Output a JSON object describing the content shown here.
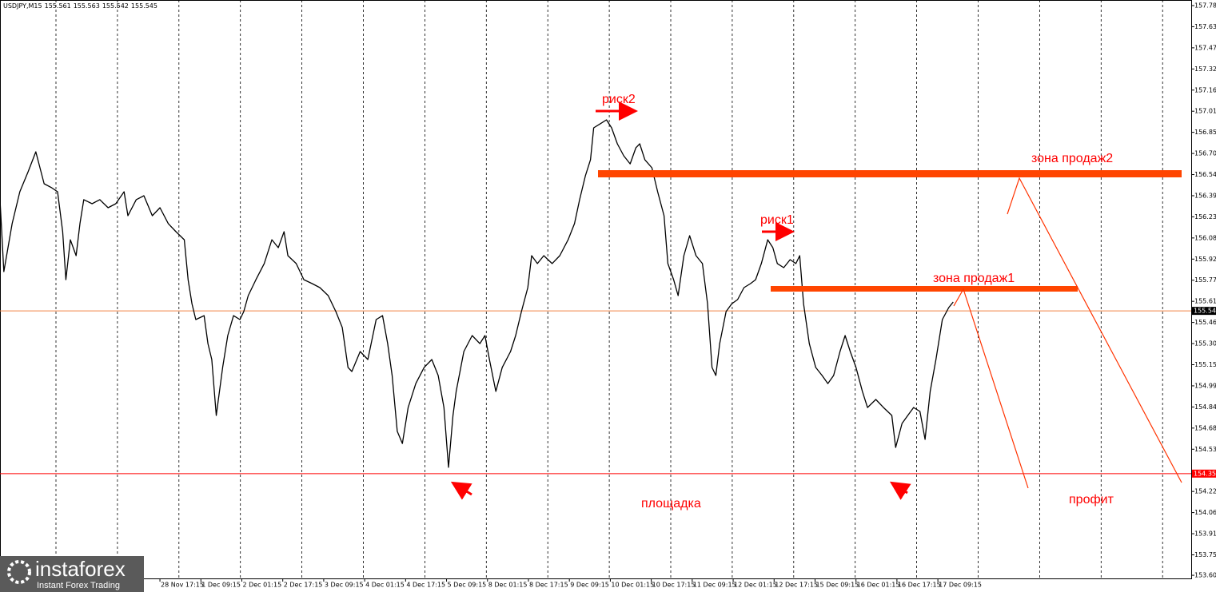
{
  "chart_data": {
    "type": "line",
    "symbol": "USDJPY,M15",
    "ohlc": [
      155.561,
      155.563,
      155.542,
      155.545
    ],
    "xlim": [
      0,
      1862
    ],
    "ylim": [
      153.582,
      157.826
    ],
    "xticks": [
      {
        "value": 250,
        "label": "28 Nov 17:15"
      },
      {
        "value": 314,
        "label": "1 Dec 09:15"
      },
      {
        "value": 378,
        "label": "2 Dec 01:15"
      },
      {
        "value": 442,
        "label": "2 Dec 17:15"
      },
      {
        "value": 506,
        "label": "3 Dec 09:15"
      },
      {
        "value": 570,
        "label": "4 Dec 01:15"
      },
      {
        "value": 634,
        "label": "4 Dec 17:15"
      },
      {
        "value": 698,
        "label": "5 Dec 09:15"
      },
      {
        "value": 762,
        "label": "8 Dec 01:15"
      },
      {
        "value": 826,
        "label": "8 Dec 17:15"
      },
      {
        "value": 890,
        "label": "9 Dec 09:15"
      },
      {
        "value": 954,
        "label": "10 Dec 01:15"
      },
      {
        "value": 1018,
        "label": "10 Dec 17:15"
      },
      {
        "value": 1082,
        "label": "11 Dec 09:15"
      },
      {
        "value": 1146,
        "label": "12 Dec 01:15"
      },
      {
        "value": 1210,
        "label": "12 Dec 17:15"
      },
      {
        "value": 1274,
        "label": "15 Dec 09:15"
      },
      {
        "value": 1338,
        "label": "16 Dec 01:15"
      },
      {
        "value": 1402,
        "label": "16 Dec 17:15"
      },
      {
        "value": 1466,
        "label": "17 Dec 09:15"
      }
    ],
    "yticks": [
      157.785,
      {
        "value": 157.63,
        "label": "157.630"
      },
      157.475,
      {
        "value": 157.32,
        "label": "157.320"
      },
      157.165,
      {
        "value": 157.01,
        "label": "157.010"
      },
      156.855,
      {
        "value": 156.7,
        "label": "156.700"
      },
      156.545,
      {
        "value": 156.39,
        "label": "156.390"
      },
      156.235,
      {
        "value": 156.08,
        "label": "156.080"
      },
      155.925,
      {
        "value": 155.77,
        "label": "155.770"
      },
      155.615,
      {
        "value": 155.46,
        "label": "155.460"
      },
      155.305,
      {
        "value": 155.15,
        "label": "155.150"
      },
      154.995,
      {
        "value": 154.84,
        "label": "154.840"
      },
      154.685,
      {
        "value": 154.53,
        "label": "154.530"
      },
      {
        "value": 154.22,
        "label": "154.220"
      },
      154.065,
      {
        "value": 153.91,
        "label": "153.910"
      },
      153.755,
      153.605
    ],
    "x": [
      0,
      6,
      19,
      31,
      44,
      56,
      69,
      81,
      90,
      98,
      103,
      110,
      119,
      125,
      131,
      144,
      156,
      169,
      181,
      194,
      200,
      213,
      225,
      238,
      250,
      263,
      275,
      288,
      294,
      300,
      306,
      319,
      325,
      331,
      338,
      348,
      356,
      365,
      375,
      381,
      388,
      400,
      413,
      425,
      435,
      444,
      450,
      463,
      475,
      488,
      500,
      513,
      525,
      535,
      544,
      550,
      563,
      575,
      588,
      598,
      606,
      613,
      621,
      629,
      638,
      650,
      663,
      675,
      685,
      694,
      701,
      708,
      713,
      725,
      738,
      750,
      758,
      765,
      775,
      785,
      798,
      806,
      815,
      825,
      831,
      840,
      850,
      863,
      875,
      888,
      898,
      906,
      915,
      923,
      928,
      938,
      948,
      956,
      965,
      975,
      985,
      994,
      1000,
      1008,
      1019,
      1028,
      1038,
      1044,
      1053,
      1060,
      1069,
      1078,
      1088,
      1098,
      1106,
      1113,
      1119,
      1125,
      1135,
      1144,
      1153,
      1163,
      1173,
      1181,
      1190,
      1200,
      1208,
      1215,
      1225,
      1235,
      1244,
      1250,
      1256,
      1265,
      1275,
      1285,
      1294,
      1303,
      1313,
      1321,
      1329,
      1338,
      1348,
      1356,
      1369,
      1381,
      1394,
      1400,
      1410,
      1419,
      1428,
      1438,
      1446,
      1454,
      1463,
      1473,
      1483,
      1490
    ],
    "series": [
      {
        "color": "#000000",
        "values": [
          156.361,
          155.833,
          156.185,
          156.419,
          156.566,
          156.712,
          156.478,
          156.448,
          156.419,
          156.126,
          155.774,
          156.067,
          155.95,
          156.185,
          156.361,
          156.331,
          156.361,
          156.302,
          156.331,
          156.419,
          156.243,
          156.361,
          156.39,
          156.243,
          156.302,
          156.185,
          156.126,
          156.067,
          155.774,
          155.598,
          155.481,
          155.51,
          155.305,
          155.188,
          154.778,
          155.13,
          155.364,
          155.51,
          155.481,
          155.54,
          155.657,
          155.774,
          155.892,
          156.067,
          156.009,
          156.126,
          155.95,
          155.892,
          155.774,
          155.745,
          155.716,
          155.657,
          155.54,
          155.423,
          155.13,
          155.1,
          155.247,
          155.188,
          155.481,
          155.51,
          155.305,
          155.071,
          154.661,
          154.572,
          154.836,
          155.012,
          155.13,
          155.188,
          155.071,
          154.836,
          154.397,
          154.778,
          154.954,
          155.247,
          155.364,
          155.305,
          155.364,
          155.188,
          154.954,
          155.13,
          155.247,
          155.364,
          155.54,
          155.716,
          155.95,
          155.892,
          155.95,
          155.892,
          155.95,
          156.067,
          156.185,
          156.361,
          156.536,
          156.654,
          156.888,
          156.917,
          156.947,
          156.888,
          156.771,
          156.683,
          156.624,
          156.742,
          156.771,
          156.654,
          156.595,
          156.419,
          156.243,
          155.892,
          155.774,
          155.657,
          155.95,
          156.097,
          155.95,
          155.892,
          155.598,
          155.13,
          155.071,
          155.305,
          155.54,
          155.598,
          155.628,
          155.716,
          155.745,
          155.774,
          155.892,
          156.067,
          156.009,
          155.892,
          155.862,
          155.921,
          155.892,
          155.95,
          155.598,
          155.305,
          155.13,
          155.071,
          155.012,
          155.071,
          155.247,
          155.364,
          155.247,
          155.13,
          154.954,
          154.836,
          154.895,
          154.836,
          154.778,
          154.543,
          154.719,
          154.778,
          154.836,
          154.807,
          154.602,
          154.954,
          155.188,
          155.481,
          155.569,
          155.61
        ]
      }
    ],
    "price_lines": [
      {
        "value": 155.545,
        "color": "#f08040",
        "box": "#000000"
      },
      {
        "value": 154.351,
        "color": "#ff0000",
        "box": "#ff0000"
      }
    ],
    "annotations": [
      "риск2",
      "зона продаж2",
      "риск1",
      "зона продаж1",
      "площадка",
      "профит"
    ],
    "watermark": {
      "brand": "instaforex",
      "tagline": "Instant Forex Trading"
    }
  }
}
